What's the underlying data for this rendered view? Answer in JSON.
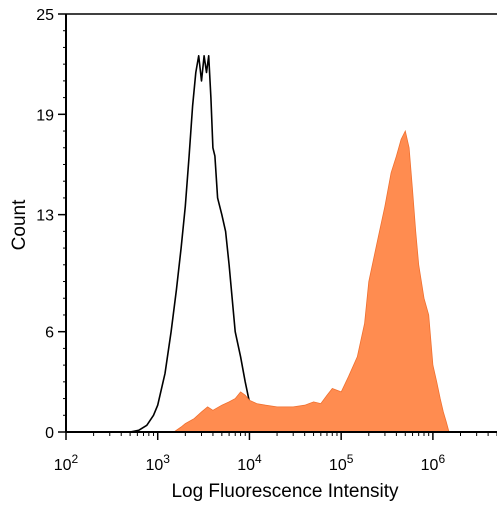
{
  "chart_data": {
    "type": "area",
    "xlabel": "Log Fluorescence Intensity",
    "ylabel": "Count",
    "x_scale": "log",
    "xlim": [
      100,
      5000000
    ],
    "ylim": [
      0,
      25
    ],
    "x_ticks": [
      {
        "value": 100,
        "base": "10",
        "exp": "2"
      },
      {
        "value": 1000,
        "base": "10",
        "exp": "3"
      },
      {
        "value": 10000,
        "base": "10",
        "exp": "4"
      },
      {
        "value": 100000,
        "base": "10",
        "exp": "5"
      },
      {
        "value": 1000000,
        "base": "10",
        "exp": "6"
      }
    ],
    "y_ticks": [
      "0",
      "6",
      "13",
      "19",
      "25"
    ],
    "colors": {
      "control_line": "#000000",
      "sample_fill": "#ff8c50",
      "sample_stroke": "#f07030",
      "axis": "#000000"
    },
    "series": [
      {
        "style": "outline",
        "x": [
          500,
          620,
          760,
          900,
          1000,
          1200,
          1400,
          1600,
          1800,
          2000,
          2200,
          2400,
          2600,
          2800,
          3000,
          3200,
          3400,
          3600,
          3800,
          4000,
          4200,
          4500,
          5000,
          5500,
          6000,
          7000,
          8000,
          9000,
          10000,
          11000,
          12000,
          13000,
          15000,
          17000,
          20000,
          23000,
          26000,
          30000
        ],
        "y": [
          0,
          0.1,
          0.4,
          1,
          1.6,
          3.5,
          6,
          8.5,
          11,
          13.5,
          16.5,
          19.5,
          21.5,
          22.5,
          21,
          22.5,
          21.5,
          22.5,
          20,
          17,
          16.5,
          14,
          13,
          12,
          10,
          6,
          4.5,
          3,
          1.8,
          1.5,
          1,
          0.8,
          0.6,
          0.5,
          0.4,
          0.3,
          0.2,
          0
        ]
      },
      {
        "style": "filled",
        "x": [
          1500,
          1800,
          2000,
          2500,
          3000,
          3500,
          4000,
          5000,
          6000,
          7000,
          8000,
          9000,
          10000,
          12000,
          15000,
          20000,
          30000,
          40000,
          50000,
          60000,
          70000,
          80000,
          100000,
          120000,
          150000,
          180000,
          200000,
          250000,
          300000,
          350000,
          400000,
          450000,
          500000,
          550000,
          600000,
          650000,
          700000,
          800000,
          900000,
          1000000,
          1100000,
          1200000,
          1300000,
          1400000,
          1500000
        ],
        "y": [
          0,
          0.3,
          0.5,
          0.8,
          1.2,
          1.5,
          1.3,
          1.6,
          1.8,
          2.0,
          2.4,
          2.2,
          1.9,
          1.7,
          1.6,
          1.5,
          1.5,
          1.6,
          1.8,
          1.7,
          2.2,
          2.6,
          2.4,
          3.3,
          4.5,
          6.5,
          9,
          11.5,
          13.5,
          15.5,
          16.5,
          17.5,
          18.0,
          17.0,
          14.5,
          12,
          10,
          8,
          7,
          4,
          3,
          2,
          1.2,
          0.6,
          0
        ]
      }
    ]
  }
}
